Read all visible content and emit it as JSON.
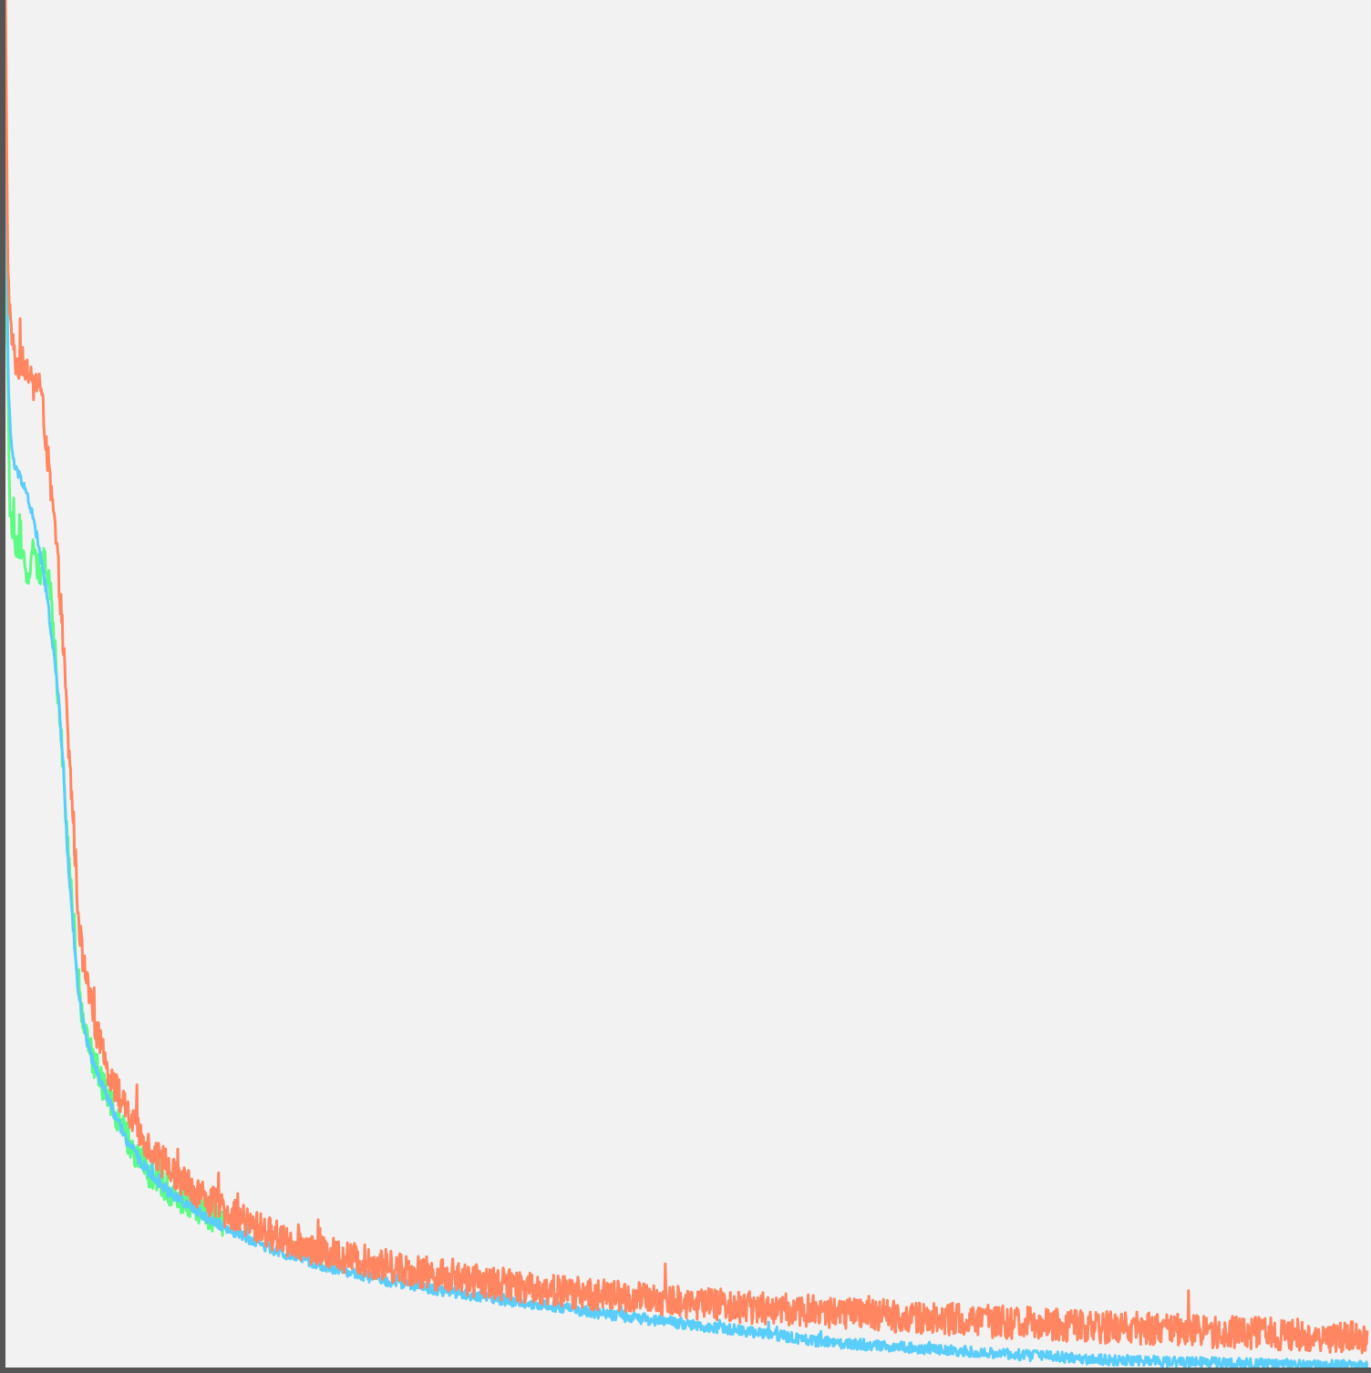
{
  "chart_data": {
    "type": "line",
    "title": "",
    "xlabel": "",
    "ylabel": "",
    "xlim": [
      0,
      1000
    ],
    "ylim": [
      0,
      1000
    ],
    "grid": false,
    "legend": "none",
    "axis_color": "#555555",
    "background": "#f2f2f2",
    "series": [
      {
        "color": "#ff8660",
        "noise": 12,
        "x": [
          0,
          1,
          2,
          4,
          7,
          10,
          13,
          16,
          20,
          25,
          30,
          33,
          36,
          40,
          43,
          46,
          50,
          53,
          56,
          60,
          65,
          70,
          75,
          80,
          85,
          90,
          95,
          100,
          110,
          120,
          130,
          140,
          150,
          160,
          180,
          200,
          230,
          260,
          300,
          350,
          400,
          450,
          500,
          550,
          600,
          700,
          800,
          900,
          1000
        ],
        "y": [
          1000,
          880,
          800,
          760,
          740,
          735,
          738,
          730,
          720,
          725,
          680,
          645,
          620,
          570,
          520,
          460,
          400,
          340,
          305,
          280,
          255,
          235,
          220,
          208,
          196,
          185,
          178,
          170,
          157,
          146,
          138,
          130,
          122,
          116,
          105,
          96,
          86,
          79,
          71,
          63,
          57,
          52,
          48,
          44,
          41,
          35,
          30,
          26,
          22
        ]
      },
      {
        "color": "#5bcdfa",
        "noise": 4,
        "x": [
          0,
          1,
          2,
          4,
          7,
          10,
          13,
          16,
          20,
          25,
          30,
          33,
          36,
          40,
          43,
          46,
          50,
          53,
          56,
          60,
          65,
          70,
          75,
          80,
          85,
          90,
          95,
          100,
          110,
          120,
          130,
          140,
          150,
          160,
          180,
          200,
          230,
          260,
          300,
          350,
          400,
          450,
          500,
          550,
          600,
          700,
          800,
          900,
          1000
        ],
        "y": [
          980,
          840,
          720,
          680,
          660,
          655,
          650,
          640,
          625,
          600,
          570,
          545,
          520,
          480,
          430,
          370,
          320,
          280,
          258,
          238,
          222,
          210,
          198,
          186,
          175,
          165,
          158,
          150,
          138,
          129,
          122,
          116,
          109,
          104,
          94,
          85,
          76,
          68,
          60,
          52,
          45,
          38,
          32,
          26,
          19,
          12,
          6,
          3,
          1
        ]
      },
      {
        "color": "#5cfb84",
        "noise": 12,
        "x": [
          0,
          1,
          2,
          3,
          5,
          8,
          11,
          14,
          17,
          20,
          24,
          28,
          32,
          36,
          40,
          43,
          46,
          50,
          53,
          56,
          60,
          65,
          70,
          75,
          80,
          85,
          90,
          95,
          100,
          110,
          120,
          130,
          140,
          150,
          160
        ],
        "y": [
          990,
          760,
          700,
          640,
          610,
          600,
          590,
          595,
          580,
          600,
          585,
          590,
          580,
          530,
          480,
          430,
          380,
          330,
          290,
          262,
          240,
          224,
          211,
          199,
          187,
          176,
          166,
          159,
          151,
          139,
          130,
          123,
          117,
          110,
          105
        ]
      }
    ]
  }
}
